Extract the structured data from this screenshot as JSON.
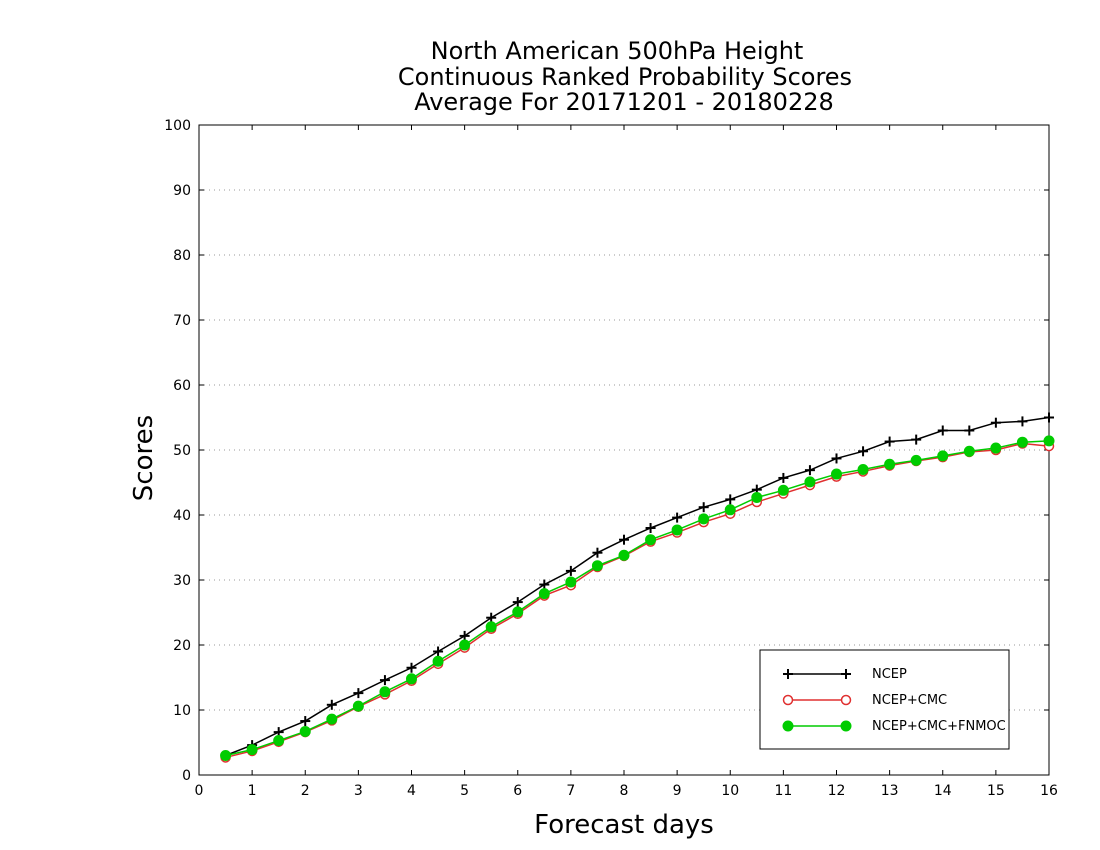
{
  "chart_data": {
    "type": "line",
    "title_lines": [
      "North American 500hPa Height",
      "Continuous Ranked Probability Scores",
      "Average For 20171201 - 20180228"
    ],
    "xlabel": "Forecast days",
    "ylabel": "Scores",
    "xlim": [
      0,
      16
    ],
    "ylim": [
      0,
      100
    ],
    "xticks": [
      "0",
      "1",
      "2",
      "3",
      "4",
      "5",
      "6",
      "7",
      "8",
      "9",
      "10",
      "11",
      "12",
      "13",
      "14",
      "15",
      "16"
    ],
    "yticks": [
      "0",
      "10",
      "20",
      "30",
      "40",
      "50",
      "60",
      "70",
      "80",
      "90",
      "100"
    ],
    "grid": "horizontal-dotted",
    "legend_position": "bottom-right",
    "x": [
      0.5,
      1,
      1.5,
      2,
      2.5,
      3,
      3.5,
      4,
      4.5,
      5,
      5.5,
      6,
      6.5,
      7,
      7.5,
      8,
      8.5,
      9,
      9.5,
      10,
      10.5,
      11,
      11.5,
      12,
      12.5,
      13,
      13.5,
      14,
      14.5,
      15,
      15.5,
      16
    ],
    "series": [
      {
        "name": "NCEP",
        "color": "#000000",
        "marker": "plus",
        "values": [
          3.0,
          4.6,
          6.6,
          8.3,
          10.8,
          12.6,
          14.6,
          16.5,
          19.0,
          21.4,
          24.2,
          26.6,
          29.3,
          31.4,
          34.2,
          36.2,
          38.0,
          39.6,
          41.2,
          42.4,
          43.9,
          45.7,
          46.9,
          48.7,
          49.8,
          51.3,
          51.6,
          53.0,
          53.0,
          54.2,
          54.4,
          55.0
        ]
      },
      {
        "name": "NCEP+CMC",
        "color": "#e03030",
        "marker": "open-circle",
        "values": [
          2.7,
          3.7,
          5.1,
          6.6,
          8.4,
          10.5,
          12.4,
          14.5,
          17.1,
          19.6,
          22.5,
          24.8,
          27.6,
          29.2,
          32.0,
          33.7,
          35.9,
          37.3,
          38.9,
          40.2,
          42.0,
          43.3,
          44.6,
          45.9,
          46.7,
          47.6,
          48.3,
          48.9,
          49.7,
          50.0,
          51.0,
          50.6
        ]
      },
      {
        "name": "NCEP+CMC+FNMOC",
        "color": "#00cc00",
        "marker": "filled-circle",
        "values": [
          3.0,
          3.9,
          5.3,
          6.7,
          8.6,
          10.6,
          12.8,
          14.8,
          17.5,
          20.0,
          22.8,
          25.1,
          27.9,
          29.7,
          32.2,
          33.8,
          36.2,
          37.7,
          39.4,
          40.8,
          42.7,
          43.8,
          45.1,
          46.3,
          47.0,
          47.8,
          48.4,
          49.1,
          49.8,
          50.3,
          51.2,
          51.4
        ]
      }
    ]
  }
}
